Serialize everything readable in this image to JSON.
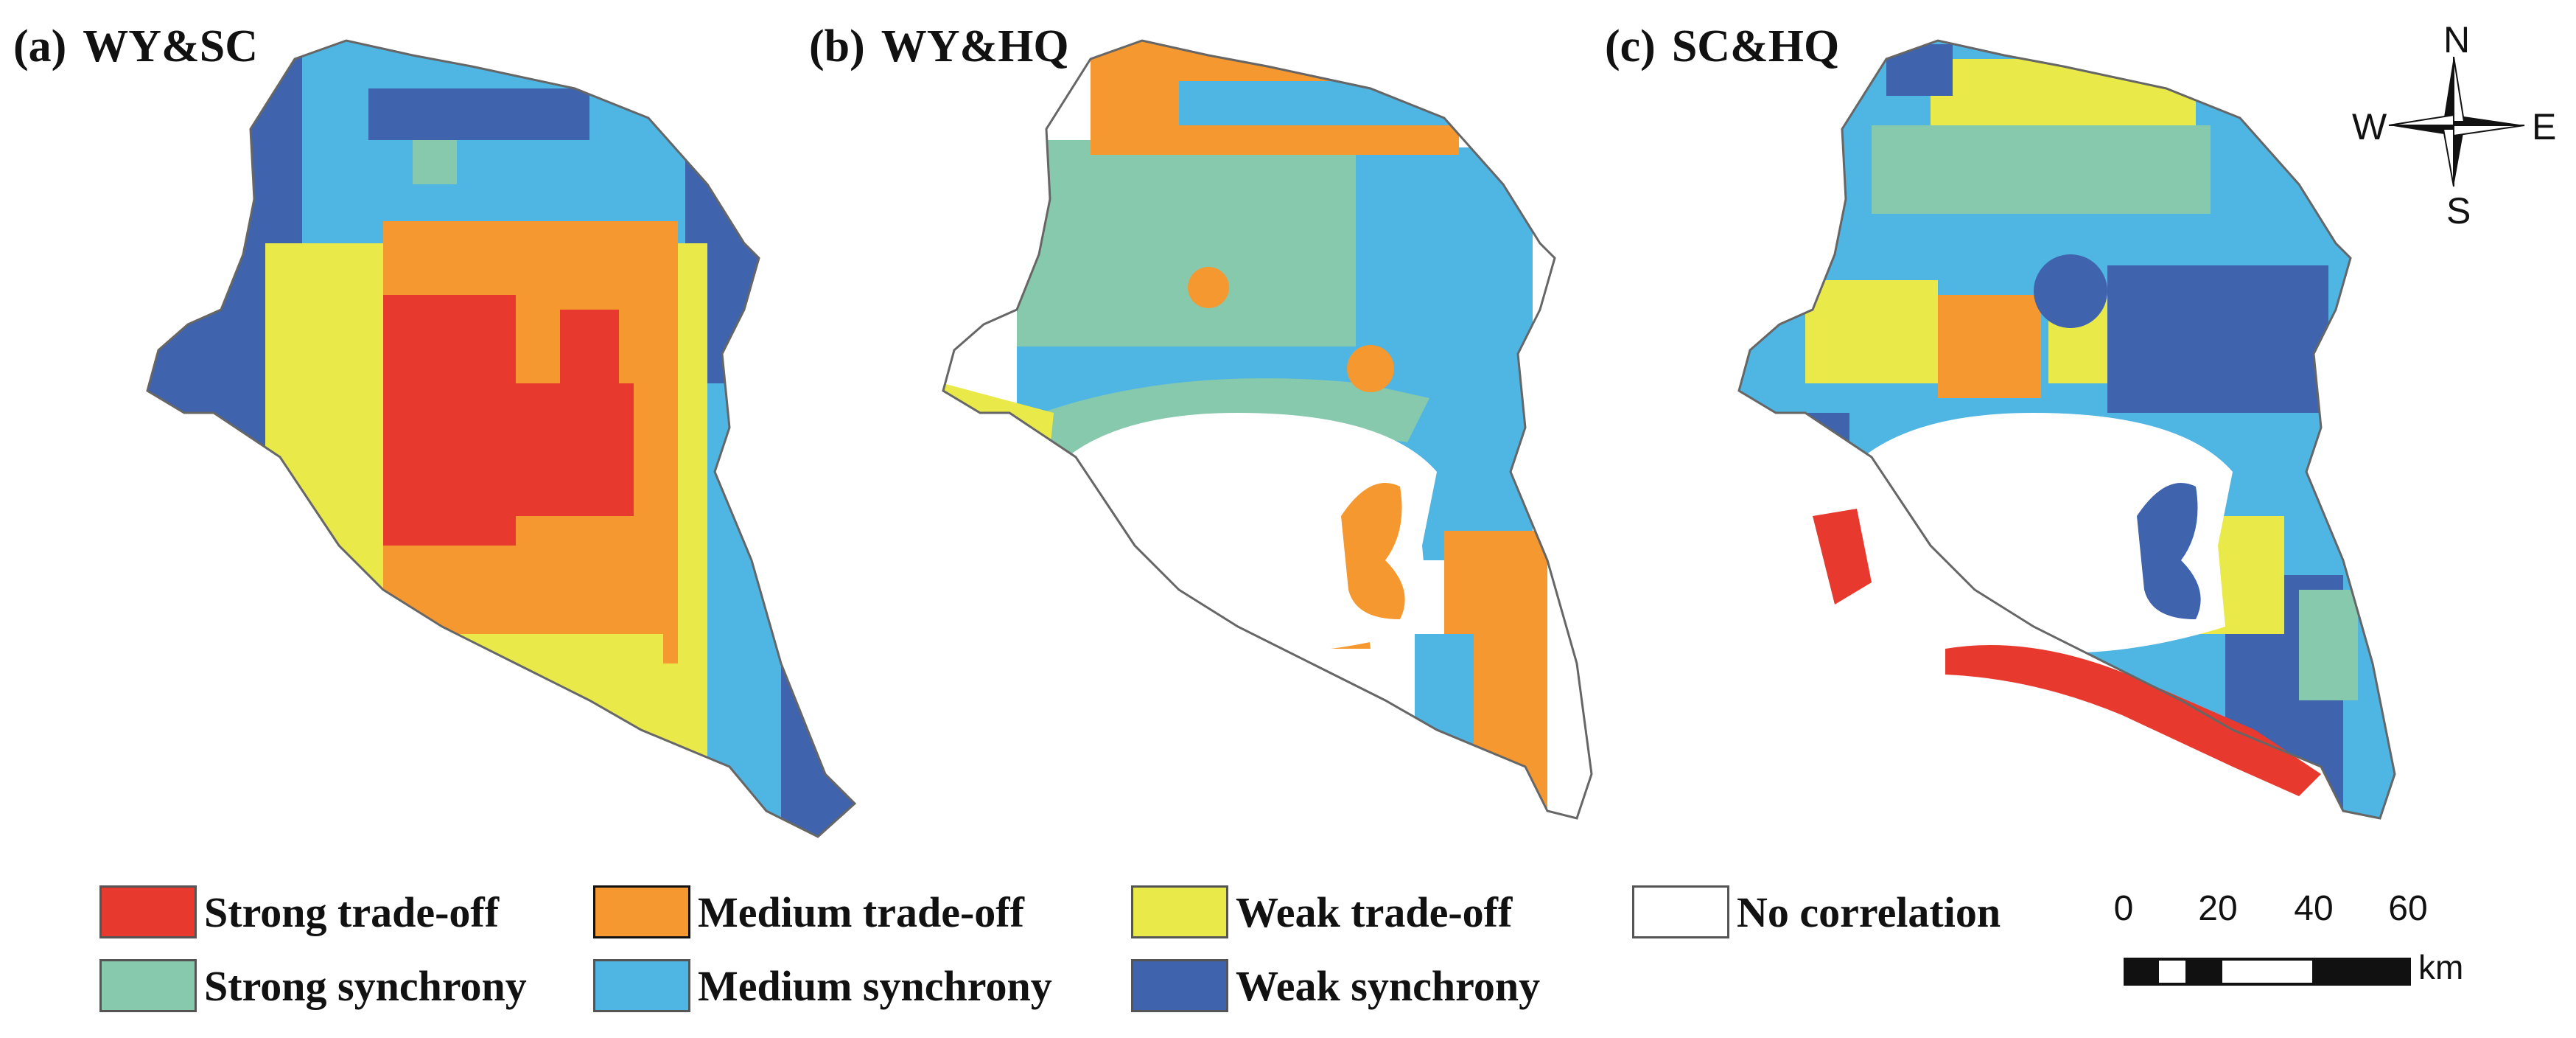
{
  "colors": {
    "strong_tradeoff": "#e8392f",
    "medium_tradeoff": "#f4982f",
    "weak_tradeoff": "#e9ea4a",
    "no_correlation": "#ffffff",
    "strong_synchrony": "#86c9ad",
    "medium_synchrony": "#4fb5e2",
    "weak_synchrony": "#3f63ad",
    "outline": "#666666"
  },
  "panels": [
    {
      "letter": "(a)",
      "title": "WY&SC"
    },
    {
      "letter": "(b)",
      "title": "WY&HQ"
    },
    {
      "letter": "(c)",
      "title": "SC&HQ"
    }
  ],
  "compass": {
    "north": "N",
    "south": "S",
    "east": "E",
    "west": "W"
  },
  "legend": [
    {
      "label": "Strong trade-off",
      "color_key": "strong_tradeoff"
    },
    {
      "label": "Medium trade-off",
      "color_key": "medium_tradeoff"
    },
    {
      "label": "Weak trade-off",
      "color_key": "weak_tradeoff"
    },
    {
      "label": "No correlation",
      "color_key": "no_correlation"
    },
    {
      "label": "Strong synchrony",
      "color_key": "strong_synchrony"
    },
    {
      "label": "Medium synchrony",
      "color_key": "medium_synchrony"
    },
    {
      "label": "Weak synchrony",
      "color_key": "weak_synchrony"
    }
  ],
  "scale_bar": {
    "ticks": [
      "0",
      "20",
      "40",
      "60"
    ],
    "unit": "km"
  }
}
